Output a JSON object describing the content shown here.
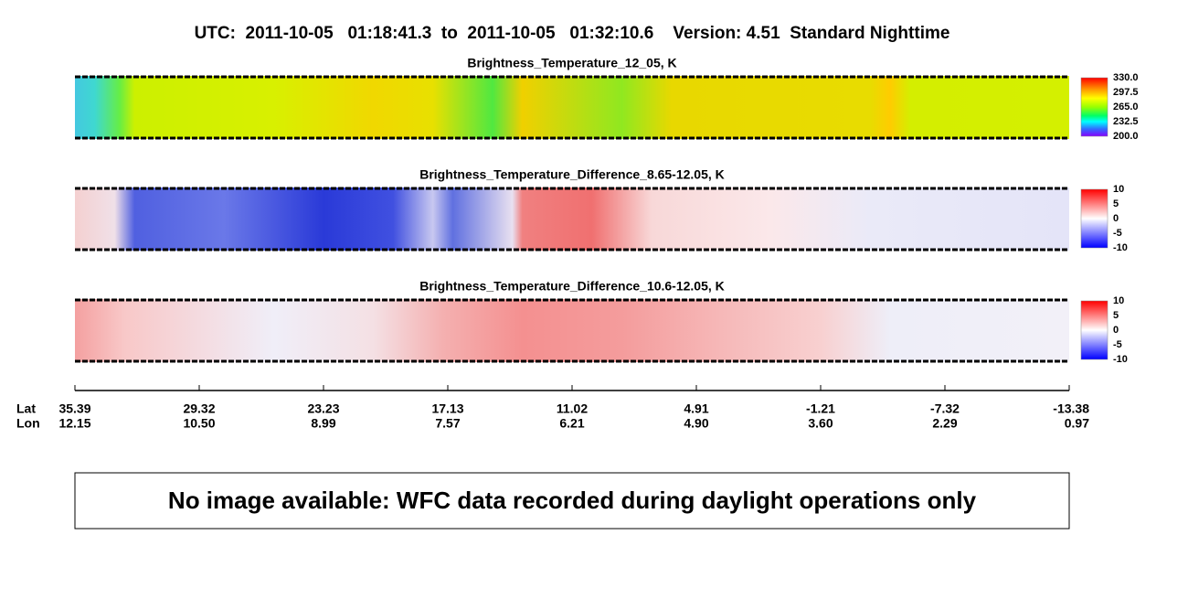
{
  "header": {
    "title": "UTC:  2011-10-05   01:18:41.3  to  2011-10-05   01:32:10.6    Version: 4.51  Standard Nighttime"
  },
  "panels": [
    {
      "title": "Brightness_Temperature_12_05, K",
      "colorbar_labels": [
        "330.0",
        "297.5",
        "265.0",
        "232.5",
        "200.0"
      ]
    },
    {
      "title": "Brightness_Temperature_Difference_8.65-12.05, K",
      "colorbar_labels": [
        "10",
        "5",
        "0",
        "-5",
        "-10"
      ]
    },
    {
      "title": "Brightness_Temperature_Difference_10.6-12.05, K",
      "colorbar_labels": [
        "10",
        "5",
        "0",
        "-5",
        "-10"
      ]
    }
  ],
  "axis": {
    "lat_label": "Lat",
    "lon_label": "Lon",
    "lat": [
      "35.39",
      "29.32",
      "23.23",
      "17.13",
      "11.02",
      "4.91",
      "-1.21",
      "-7.32",
      "-13.38"
    ],
    "lon": [
      "12.15",
      "10.50",
      "8.99",
      "7.57",
      "6.21",
      "4.90",
      "3.60",
      "2.29",
      "0.97"
    ]
  },
  "message": "No image available: WFC data recorded during daylight operations only"
}
